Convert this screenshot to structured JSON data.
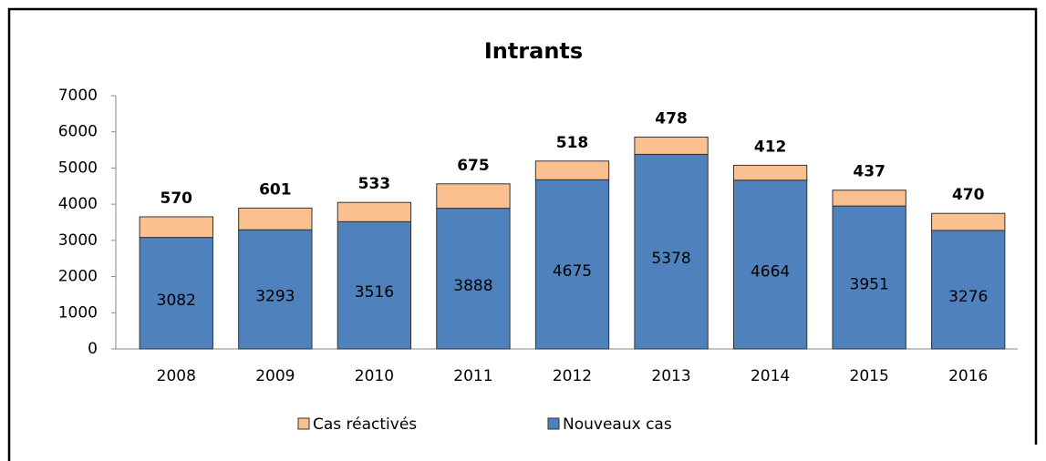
{
  "chart_data": {
    "type": "stacked_bar",
    "title": "Intrants",
    "categories": [
      "2008",
      "2009",
      "2010",
      "2011",
      "2012",
      "2013",
      "2014",
      "2015",
      "2016"
    ],
    "series": [
      {
        "name": "Cas réactivés",
        "color": "#fac090",
        "values": [
          570,
          601,
          533,
          675,
          518,
          478,
          412,
          437,
          470
        ]
      },
      {
        "name": "Nouveaux cas",
        "color": "#4f81bd",
        "values": [
          3082,
          3293,
          3516,
          3888,
          4675,
          5378,
          4664,
          3951,
          3276
        ]
      }
    ],
    "ylim": [
      0,
      7000
    ],
    "yticks": [
      0,
      1000,
      2000,
      3000,
      4000,
      5000,
      6000,
      7000
    ],
    "grid": false,
    "legend": "bottom"
  }
}
